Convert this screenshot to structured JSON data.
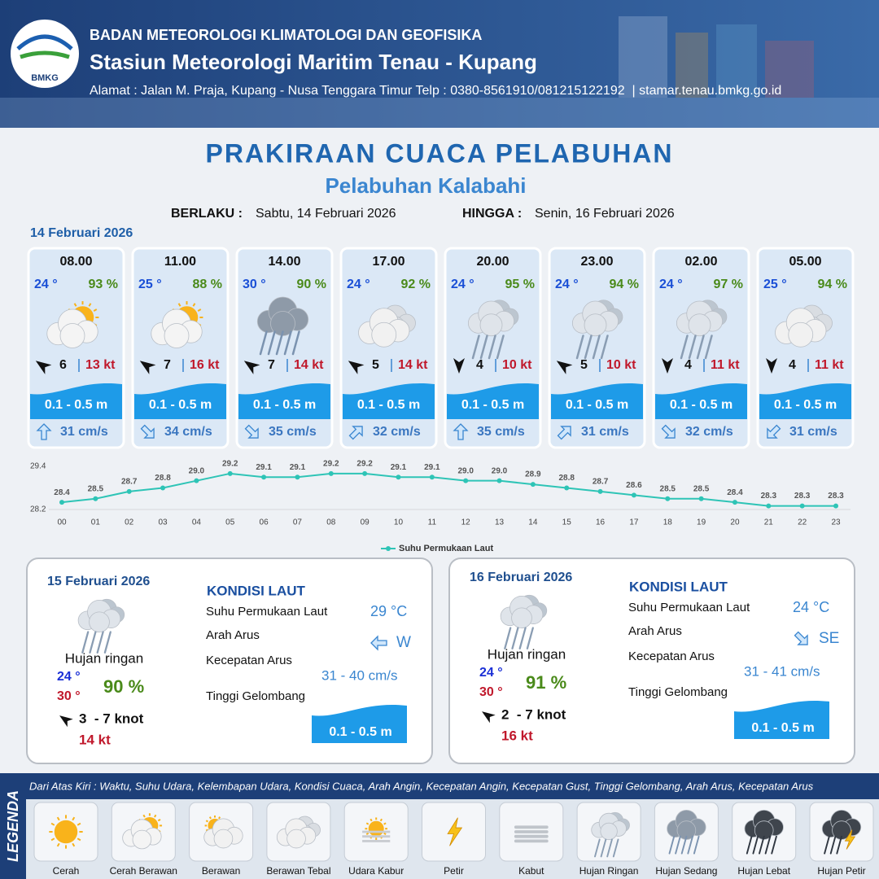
{
  "header": {
    "logo": "BMKG",
    "org": "BADAN METEOROLOGI KLIMATOLOGI DAN GEOFISIKA",
    "station": "Stasiun Meteorologi Maritim Tenau - Kupang",
    "address": "Alamat : Jalan M. Praja, Kupang - Nusa Tenggara Timur Telp : 0380-8561910/081215122192  | stamar.tenau.bmkg.go.id"
  },
  "title": "PRAKIRAAN CUACA PELABUHAN",
  "subtitle": "Pelabuhan Kalabahi",
  "validity": {
    "from_label": "BERLAKU :",
    "from": "Sabtu, 14 Februari 2026",
    "to_label": "HINGGA :",
    "to": "Senin, 16 Februari 2026"
  },
  "day1": {
    "date": "14 Februari 2026",
    "forecasts": [
      {
        "time": "08.00",
        "temp": "24 °",
        "humidity": "93 %",
        "wind": "6",
        "gust": "13 kt",
        "wave": "0.1 - 0.5 m",
        "current": "31 cm/s"
      },
      {
        "time": "11.00",
        "temp": "25 °",
        "humidity": "88 %",
        "wind": "7",
        "gust": "16 kt",
        "wave": "0.1 - 0.5 m",
        "current": "34 cm/s"
      },
      {
        "time": "14.00",
        "temp": "30 °",
        "humidity": "90 %",
        "wind": "7",
        "gust": "14 kt",
        "wave": "0.1 - 0.5 m",
        "current": "35 cm/s"
      },
      {
        "time": "17.00",
        "temp": "24 °",
        "humidity": "92 %",
        "wind": "5",
        "gust": "14 kt",
        "wave": "0.1 - 0.5 m",
        "current": "32 cm/s"
      },
      {
        "time": "20.00",
        "temp": "24 °",
        "humidity": "95 %",
        "wind": "4",
        "gust": "10 kt",
        "wave": "0.1 - 0.5 m",
        "current": "35 cm/s"
      },
      {
        "time": "23.00",
        "temp": "24 °",
        "humidity": "94 %",
        "wind": "5",
        "gust": "10 kt",
        "wave": "0.1 - 0.5 m",
        "current": "31 cm/s"
      },
      {
        "time": "02.00",
        "temp": "24 °",
        "humidity": "97 %",
        "wind": "4",
        "gust": "11 kt",
        "wave": "0.1 - 0.5 m",
        "current": "32 cm/s"
      },
      {
        "time": "05.00",
        "temp": "25 °",
        "humidity": "94 %",
        "wind": "4",
        "gust": "11 kt",
        "wave": "0.1 - 0.5 m",
        "current": "31 cm/s"
      }
    ]
  },
  "chart_data": {
    "type": "line",
    "categories": [
      "00",
      "01",
      "02",
      "03",
      "04",
      "05",
      "06",
      "07",
      "08",
      "09",
      "10",
      "11",
      "12",
      "13",
      "14",
      "15",
      "16",
      "17",
      "18",
      "19",
      "20",
      "21",
      "22",
      "23"
    ],
    "series": [
      {
        "name": "Suhu Permukaan Laut",
        "color": "#2ec4b6",
        "values": [
          28.4,
          28.5,
          28.7,
          28.8,
          29.0,
          29.2,
          29.1,
          29.1,
          29.2,
          29.2,
          29.1,
          29.1,
          29.0,
          29.0,
          28.9,
          28.8,
          28.7,
          28.6,
          28.5,
          28.5,
          28.4,
          28.3,
          28.3,
          28.3
        ],
        "value_labels": [
          "28.4",
          "28.5",
          "28.7",
          "28.8",
          "29.0",
          "29.2",
          "29.1",
          "29.1",
          "29.2",
          "29.2",
          "29.1",
          "29.1",
          "29.0",
          "29.0",
          "28.9",
          "28.8",
          "28.7",
          "28.6",
          "28.5",
          "28.5",
          "28.4",
          "28.3",
          "28.3",
          "28.3"
        ]
      }
    ],
    "ylim": [
      28.2,
      29.4
    ],
    "yticks": [
      28.2,
      29.4
    ],
    "grid": false
  },
  "days": [
    {
      "date": "15 Februari 2026",
      "condition": "Hujan ringan",
      "temp_min": "24 °",
      "temp_max": "30 °",
      "humidity": "90 %",
      "wind": "3  - 7 knot",
      "gust": "14 kt",
      "heading": "KONDISI LAUT",
      "sst_label": "Suhu Permukaan Laut",
      "sst": "29 °C",
      "dir_label": "Arah Arus",
      "dir": "W",
      "speed_label": "Kecepatan Arus",
      "speed": "31 - 40 cm/s",
      "wave_label": "Tinggi Gelombang",
      "wave": "0.1 - 0.5 m"
    },
    {
      "date": "16 Februari 2026",
      "condition": "Hujan ringan",
      "temp_min": "24 °",
      "temp_max": "30 °",
      "humidity": "91 %",
      "wind": "2  - 7 knot",
      "gust": "16 kt",
      "heading": "KONDISI LAUT",
      "sst_label": "Suhu Permukaan Laut",
      "sst": "24 °C",
      "dir_label": "Arah Arus",
      "dir": "SE",
      "speed_label": "Kecepatan Arus",
      "speed": "31 - 41 cm/s",
      "wave_label": "Tinggi Gelombang",
      "wave": "0.1 - 0.5 m"
    }
  ],
  "legend": {
    "title": "LEGENDA",
    "description": "Dari Atas Kiri : Waktu, Suhu Udara, Kelembapan Udara, Kondisi Cuaca, Arah Angin, Kecepatan Angin, Kecepatan Gust, Tinggi Gelombang, Arah Arus, Kecepatan Arus",
    "items": [
      "Cerah",
      "Cerah Berawan",
      "Berawan",
      "Berawan Tebal",
      "Udara Kabur",
      "Petir",
      "Kabut",
      "Hujan Ringan",
      "Hujan Sedang",
      "Hujan Lebat",
      "Hujan Petir"
    ]
  }
}
